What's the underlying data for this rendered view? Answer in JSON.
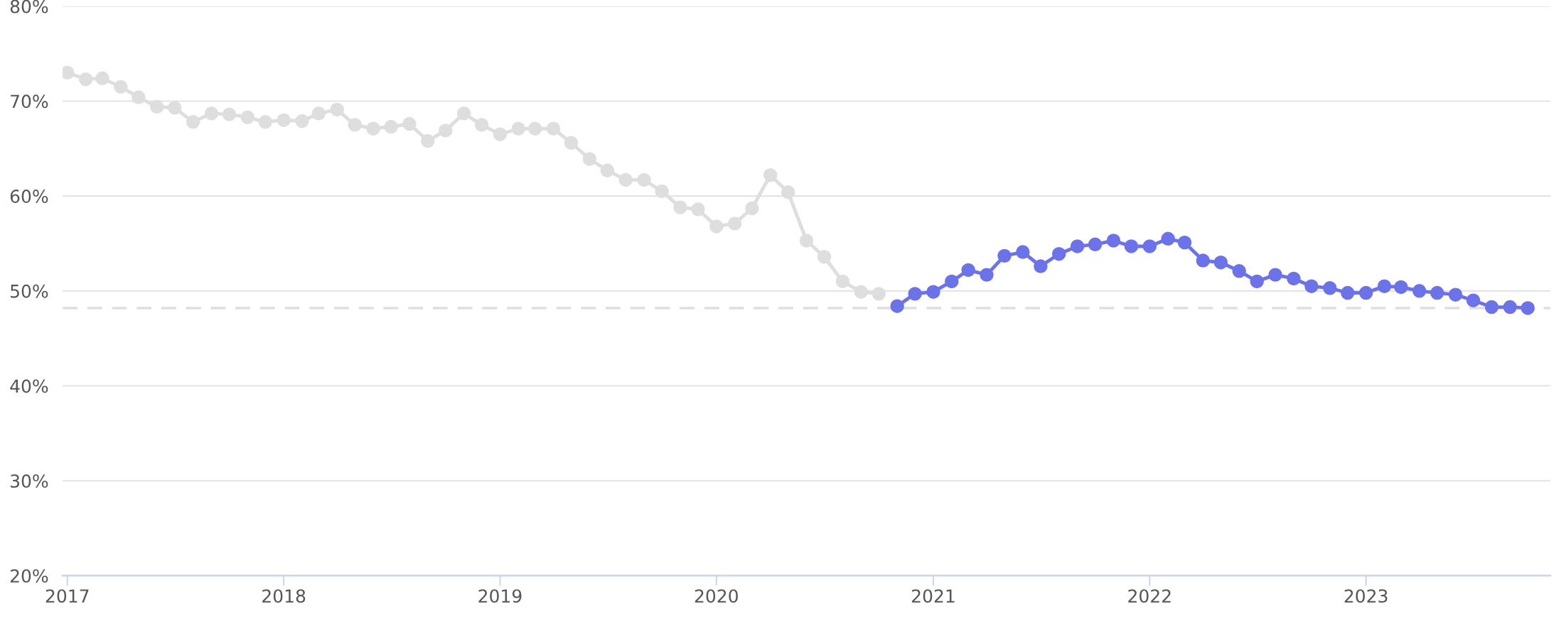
{
  "chart_data": {
    "type": "line",
    "marker": "circle",
    "line_style": "solid",
    "grid": "y",
    "legend": false,
    "series": [
      {
        "color": "#dedede",
        "x": [
          "2017-01",
          "2017-02",
          "2017-03",
          "2017-04",
          "2017-05",
          "2017-06",
          "2017-07",
          "2017-08",
          "2017-09",
          "2017-10",
          "2017-11",
          "2017-12",
          "2018-01",
          "2018-02",
          "2018-03",
          "2018-04",
          "2018-05",
          "2018-06",
          "2018-07",
          "2018-08",
          "2018-09",
          "2018-10",
          "2018-11",
          "2018-12",
          "2019-01",
          "2019-02",
          "2019-03",
          "2019-04",
          "2019-05",
          "2019-06",
          "2019-07",
          "2019-08",
          "2019-09",
          "2019-10",
          "2019-11",
          "2019-12",
          "2020-01",
          "2020-02",
          "2020-03",
          "2020-04",
          "2020-05",
          "2020-06",
          "2020-07",
          "2020-08",
          "2020-09",
          "2020-10"
        ],
        "values": [
          73.0,
          72.3,
          72.4,
          71.5,
          70.4,
          69.4,
          69.3,
          67.8,
          68.7,
          68.6,
          68.3,
          67.8,
          68.0,
          67.9,
          68.7,
          69.1,
          67.5,
          67.1,
          67.3,
          67.6,
          65.8,
          66.9,
          68.7,
          67.5,
          66.5,
          67.1,
          67.1,
          67.1,
          65.6,
          63.9,
          62.7,
          61.7,
          61.7,
          60.5,
          58.8,
          58.6,
          56.8,
          57.1,
          58.7,
          62.2,
          60.4,
          55.3,
          53.6,
          51.0,
          49.9,
          49.7
        ]
      },
      {
        "color": "#6c72e8",
        "x": [
          "2020-11",
          "2020-12",
          "2021-01",
          "2021-02",
          "2021-03",
          "2021-04",
          "2021-05",
          "2021-06",
          "2021-07",
          "2021-08",
          "2021-09",
          "2021-10",
          "2021-11",
          "2021-12",
          "2022-01",
          "2022-02",
          "2022-03",
          "2022-04",
          "2022-05",
          "2022-06",
          "2022-07",
          "2022-08",
          "2022-09",
          "2022-10",
          "2022-11",
          "2022-12",
          "2023-01",
          "2023-02",
          "2023-03",
          "2023-04",
          "2023-05",
          "2023-06",
          "2023-07",
          "2023-08",
          "2023-09",
          "2023-10"
        ],
        "values": [
          48.4,
          49.7,
          49.9,
          51.0,
          52.2,
          51.7,
          53.7,
          54.1,
          52.6,
          53.9,
          54.7,
          54.9,
          55.3,
          54.7,
          54.7,
          55.5,
          55.1,
          53.2,
          53.0,
          52.1,
          51.0,
          51.7,
          51.3,
          50.5,
          50.3,
          49.8,
          49.8,
          50.5,
          50.4,
          50.0,
          49.8,
          49.6,
          49.0,
          48.3,
          48.3,
          48.2
        ]
      }
    ],
    "ref_lines": [
      {
        "axis": "y",
        "value": 48.2,
        "color": "#dedede",
        "line_style": "dashed"
      }
    ],
    "xlim": [
      "2016-12-24",
      "2023-11-08"
    ],
    "xticks": [
      {
        "value": "2017",
        "label": "2017"
      },
      {
        "value": "2018",
        "label": "2018"
      },
      {
        "value": "2019",
        "label": "2019"
      },
      {
        "value": "2020",
        "label": "2020"
      },
      {
        "value": "2021",
        "label": "2021"
      },
      {
        "value": "2022",
        "label": "2022"
      },
      {
        "value": "2023",
        "label": "2023"
      }
    ],
    "ylim": [
      20,
      80
    ],
    "yticks": [
      {
        "value": 20,
        "label": "20%"
      },
      {
        "value": 30,
        "label": "30%"
      },
      {
        "value": 40,
        "label": "40%"
      },
      {
        "value": 50,
        "label": "50%"
      },
      {
        "value": 60,
        "label": "60%"
      },
      {
        "value": 70,
        "label": "70%"
      },
      {
        "value": 80,
        "label": "80%"
      }
    ]
  }
}
